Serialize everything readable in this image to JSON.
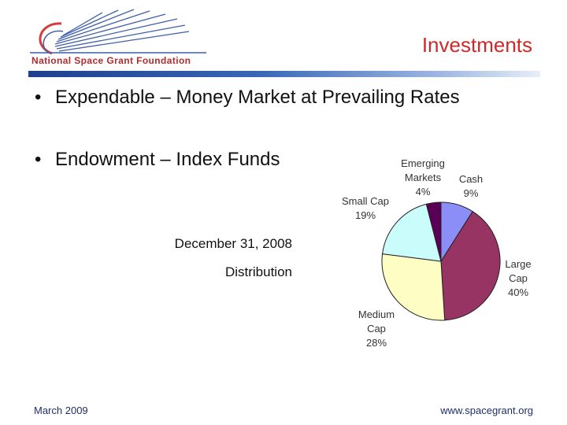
{
  "header": {
    "logo_text": "National Space Grant Foundation",
    "title": "Investments"
  },
  "bullets": [
    {
      "text": "Expendable – Money Market at Prevailing Rates"
    },
    {
      "text": "Endowment – Index Funds"
    }
  ],
  "captions": {
    "date": "December 31, 2008",
    "label": "Distribution"
  },
  "chart_data": {
    "type": "pie",
    "slices": [
      {
        "label_lines": [
          "Cash"
        ],
        "percent_label": "9%",
        "value": 9,
        "color": "#8c8ef7"
      },
      {
        "label_lines": [
          "Large",
          "Cap"
        ],
        "percent_label": "40%",
        "value": 40,
        "color": "#973463"
      },
      {
        "label_lines": [
          "Medium",
          "Cap"
        ],
        "percent_label": "28%",
        "value": 28,
        "color": "#fefdc4"
      },
      {
        "label_lines": [
          "Small Cap"
        ],
        "percent_label": "19%",
        "value": 19,
        "color": "#cbfcfc"
      },
      {
        "label_lines": [
          "Emerging",
          "Markets"
        ],
        "percent_label": "4%",
        "value": 4,
        "color": "#5b0057"
      }
    ]
  },
  "footer": {
    "left": "March 2009",
    "right": "www.spacegrant.org"
  },
  "colors": {
    "title": "#cc2a2a",
    "logo_text": "#b52a2a",
    "footer_text": "#1f2f6a",
    "rule_dark": "#1f3f8f"
  }
}
